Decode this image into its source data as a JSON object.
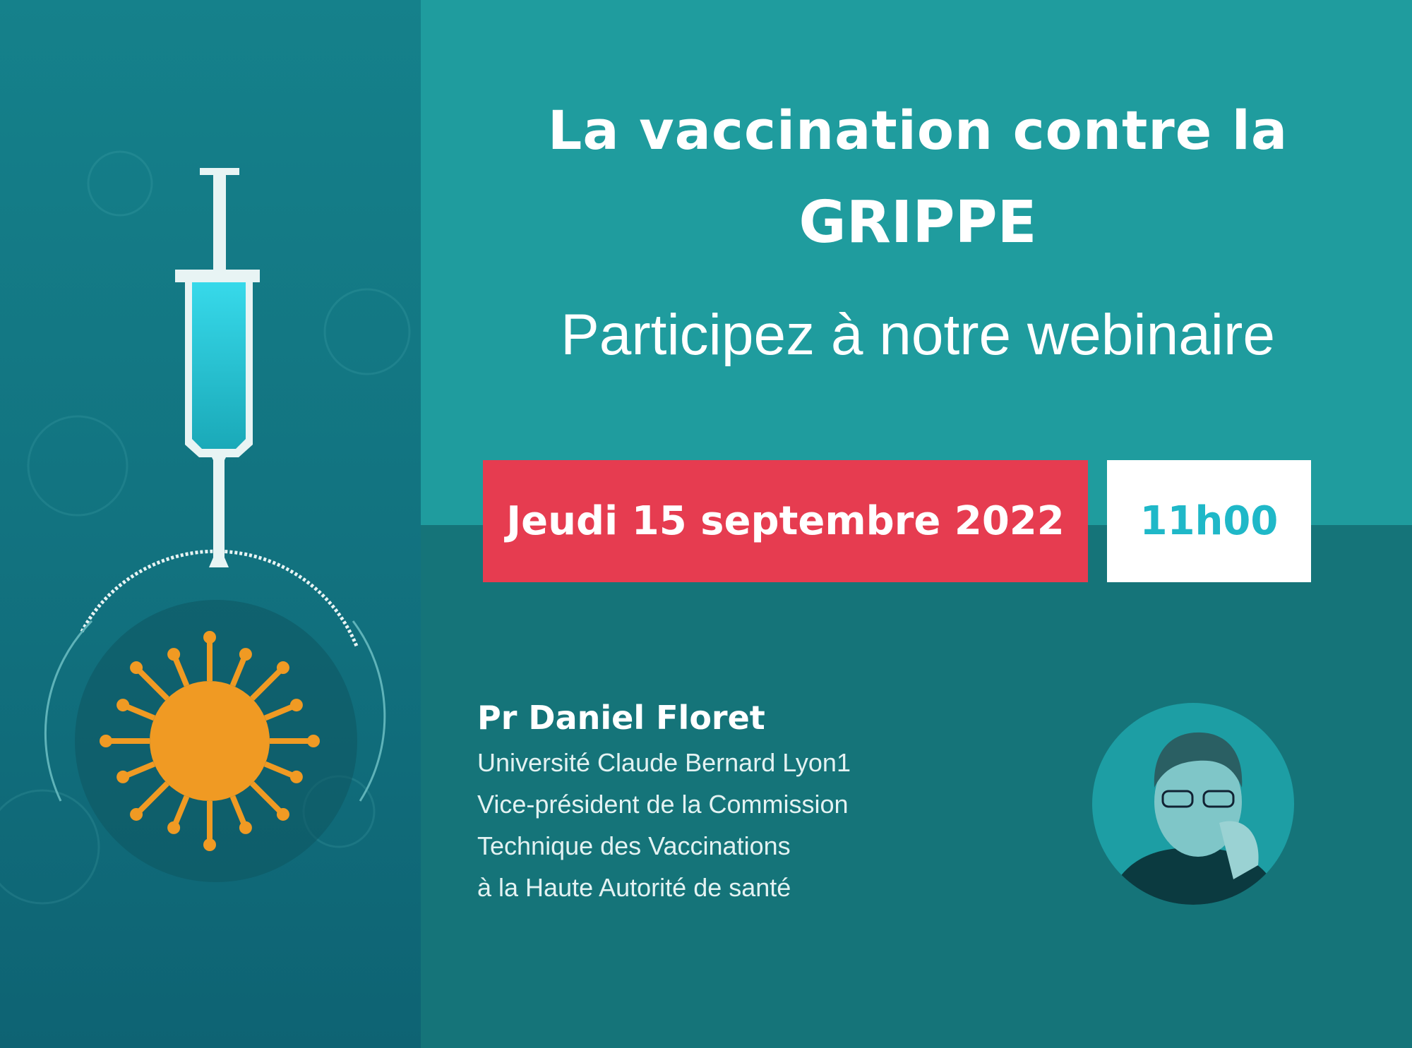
{
  "header": {
    "title_line1": "La vaccination contre la",
    "title_line2": "GRIPPE",
    "subtitle": "Participez à notre webinaire"
  },
  "event": {
    "date": "Jeudi 15 septembre 2022",
    "time": "11h00"
  },
  "speaker": {
    "name": "Pr Daniel Floret",
    "affiliation_lines": [
      "Université Claude Bernard Lyon1",
      "Vice-président de la Commission",
      "Technique des Vaccinations",
      "à la Haute Autorité de santé"
    ]
  },
  "illustration": {
    "icons": [
      "syringe-icon",
      "virus-icon"
    ]
  },
  "colors": {
    "top_teal": "#1f9c9e",
    "bottom_teal": "#157479",
    "left_panel": "#127380",
    "date_red": "#e63c50",
    "time_cyan": "#1fb8c8",
    "virus_orange": "#f09a23"
  }
}
